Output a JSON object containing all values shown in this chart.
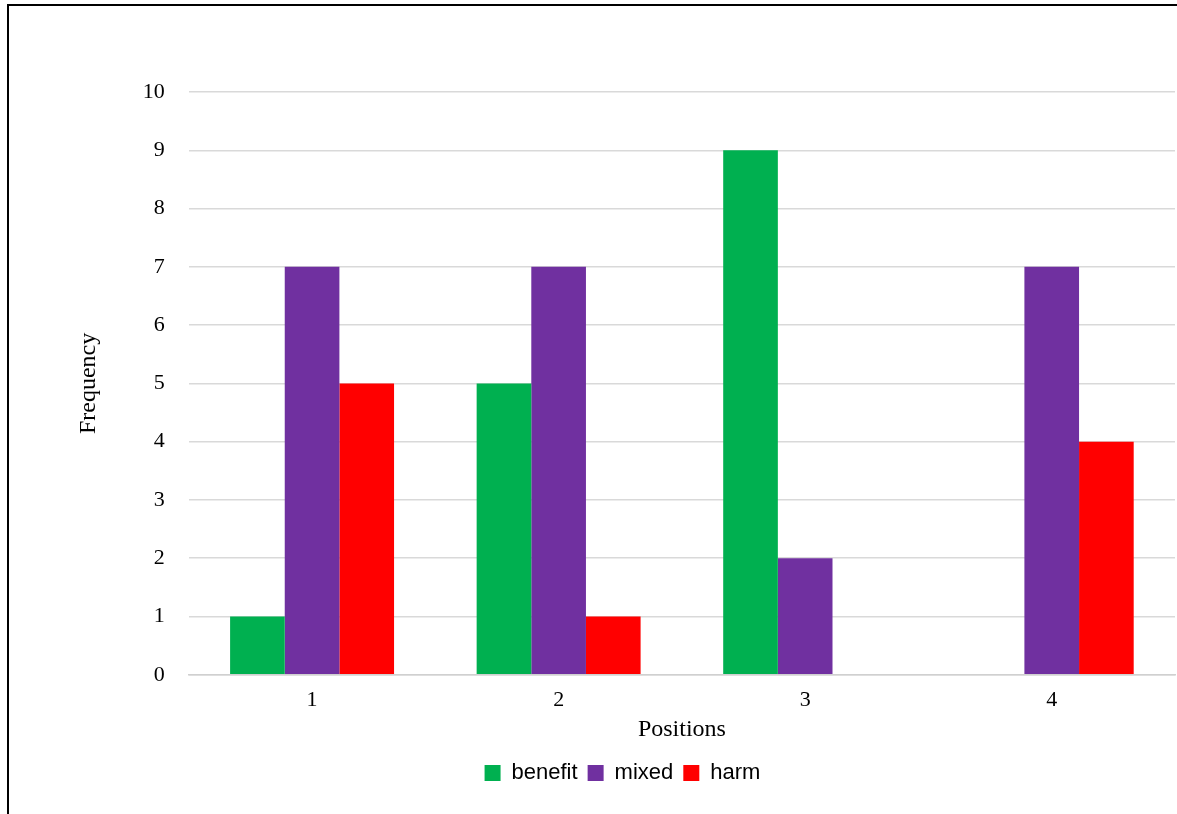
{
  "chart_data": {
    "type": "bar",
    "xlabel": "Positions",
    "ylabel": "Frequency",
    "categories": [
      "1",
      "2",
      "3",
      "4"
    ],
    "series": [
      {
        "name": "benefit",
        "color": "#00b050",
        "values": [
          1,
          5,
          9,
          0
        ]
      },
      {
        "name": "mixed",
        "color": "#7030a0",
        "values": [
          7,
          7,
          2,
          7
        ]
      },
      {
        "name": "harm",
        "color": "#ff0000",
        "values": [
          5,
          1,
          0,
          4
        ]
      }
    ],
    "ylim": [
      0,
      10
    ],
    "yticks": [
      0,
      1,
      2,
      3,
      4,
      5,
      6,
      7,
      8,
      9,
      10
    ],
    "grid": "y",
    "legend": "bottom"
  }
}
